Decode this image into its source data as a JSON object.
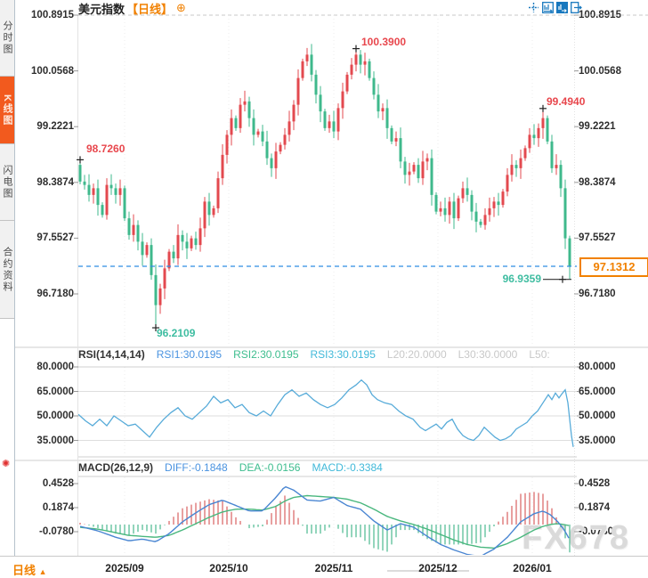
{
  "sidebar": {
    "tabs": [
      {
        "label": "分时图",
        "active": false
      },
      {
        "label": "K线图",
        "active": true
      },
      {
        "label": "闪电图",
        "active": false
      },
      {
        "label": "合约资料",
        "active": false
      }
    ],
    "indicator_icon": "✺"
  },
  "header": {
    "title": "美元指数",
    "period_tag": "【日线】",
    "add_icon": "⊕",
    "toolbar_icons": [
      "crosshair",
      "axis-scale",
      "zoom-drag",
      "restore"
    ]
  },
  "main_chart": {
    "y_axis_labels": [
      "100.8915",
      "100.0568",
      "99.2221",
      "98.3874",
      "97.5527",
      "96.7180"
    ],
    "annotations": {
      "first_high": "98.7260",
      "low": "96.2109",
      "peak": "100.3900",
      "recent_high": "99.4940",
      "recent_low": "96.9359",
      "current_price": "97.1312"
    }
  },
  "rsi": {
    "title": "RSI(14,14,14)",
    "items": [
      {
        "label": "RSI1:30.0195",
        "color": "#4a93e0"
      },
      {
        "label": "RSI2:30.0195",
        "color": "#3dbd8e"
      },
      {
        "label": "RSI3:30.0195",
        "color": "#41b9d9"
      },
      {
        "label": "L20:20.0000",
        "color": "#c8c8c8"
      },
      {
        "label": "L30:30.0000",
        "color": "#c8c8c8"
      },
      {
        "label": "L50:",
        "color": "#c8c8c8"
      }
    ],
    "y_axis_labels": [
      "80.0000",
      "65.0000",
      "50.0000",
      "35.0000"
    ]
  },
  "macd": {
    "title": "MACD(26,12,9)",
    "items": [
      {
        "label": "DIFF:-0.1848",
        "color": "#4a93e0"
      },
      {
        "label": "DEA:-0.0156",
        "color": "#3dbd8e"
      },
      {
        "label": "MACD:-0.3384",
        "color": "#41b9d9"
      }
    ],
    "y_axis_labels": [
      "0.4528",
      "0.1874",
      "-0.0780"
    ]
  },
  "footer": {
    "period_label": "日线",
    "arrow_icon": "▲",
    "dates": [
      "2025/09",
      "2025/10",
      "2025/11",
      "2025/12",
      "2026/01"
    ]
  },
  "watermark": "FX678",
  "colors": {
    "up": "#e3494f",
    "down": "#3fb98c",
    "accent_orange": "#f18101",
    "current_price_line": "#2f8de4",
    "rsi_line": "#57abd9",
    "diff_line": "#4a86d2",
    "dea_line": "#49b77e",
    "hist_up": "#d96060",
    "hist_down": "#4bb98f",
    "annotation_up": "#e8474d",
    "annotation_down": "#3fbda1",
    "grid": "#d9d9d9",
    "marker": "#222222"
  },
  "chart_data": [
    {
      "type": "candlestick",
      "title": "美元指数 日线",
      "x_axis_labels": [
        "2025/09",
        "2025/10",
        "2025/11",
        "2025/12",
        "2026/01"
      ],
      "y_ticks": [
        100.8915,
        100.0568,
        99.2221,
        98.3874,
        97.5527,
        96.718
      ],
      "first_open": 98.65,
      "closes": [
        98.4,
        98.35,
        98.2,
        98.3,
        98.05,
        97.9,
        98.35,
        98.3,
        98.2,
        98.3,
        97.85,
        97.6,
        97.75,
        97.5,
        97.3,
        97.45,
        97.0,
        96.55,
        96.8,
        97.1,
        97.35,
        97.25,
        97.6,
        97.5,
        97.4,
        97.55,
        97.45,
        97.7,
        98.1,
        97.9,
        98.0,
        98.45,
        98.8,
        99.1,
        99.35,
        99.2,
        99.55,
        99.6,
        99.35,
        99.1,
        99.15,
        99.0,
        98.75,
        98.6,
        98.85,
        98.95,
        99.1,
        99.3,
        99.55,
        99.95,
        100.2,
        100.3,
        100.0,
        99.7,
        99.45,
        99.2,
        99.3,
        99.15,
        99.5,
        99.75,
        100.0,
        100.15,
        100.3,
        100.15,
        100.2,
        99.95,
        99.7,
        99.45,
        99.5,
        99.2,
        99.0,
        99.05,
        98.7,
        98.5,
        98.55,
        98.65,
        98.45,
        98.7,
        98.75,
        98.2,
        97.95,
        98.0,
        97.9,
        98.1,
        97.85,
        98.15,
        98.3,
        98.2,
        97.95,
        97.8,
        97.75,
        97.9,
        98.0,
        98.1,
        98.05,
        98.25,
        98.5,
        98.65,
        98.6,
        98.75,
        98.9,
        99.1,
        99.05,
        99.2,
        99.35,
        99.0,
        98.6,
        98.65,
        98.3,
        97.55,
        97.1312
      ],
      "marked_candles": [
        {
          "index": 0,
          "high": 98.726
        },
        {
          "index": 17,
          "low": 96.2109
        },
        {
          "index": 62,
          "high": 100.39
        },
        {
          "index": 104,
          "high": 99.494
        },
        {
          "index": 110,
          "low": 96.9359
        }
      ],
      "current_price": 97.1312
    },
    {
      "type": "line",
      "title": "RSI(14,14,14)",
      "ylim": [
        25,
        85
      ],
      "y_ticks": [
        80,
        65,
        50,
        35
      ],
      "last_values": {
        "RSI1": 30.0195,
        "RSI2": 30.0195,
        "RSI3": 30.0195,
        "L20": 20.0,
        "L30": 30.0
      },
      "points": [
        [
          88,
          51
        ],
        [
          96,
          47
        ],
        [
          104,
          44
        ],
        [
          112,
          48
        ],
        [
          120,
          44
        ],
        [
          128,
          50
        ],
        [
          136,
          47
        ],
        [
          144,
          44
        ],
        [
          152,
          45
        ],
        [
          160,
          41
        ],
        [
          168,
          37
        ],
        [
          176,
          43
        ],
        [
          184,
          48
        ],
        [
          192,
          52
        ],
        [
          200,
          55
        ],
        [
          208,
          50
        ],
        [
          216,
          48
        ],
        [
          224,
          52
        ],
        [
          232,
          56
        ],
        [
          240,
          62
        ],
        [
          248,
          58
        ],
        [
          256,
          60
        ],
        [
          264,
          55
        ],
        [
          272,
          57
        ],
        [
          280,
          52
        ],
        [
          288,
          50
        ],
        [
          296,
          53
        ],
        [
          304,
          50
        ],
        [
          312,
          57
        ],
        [
          320,
          63
        ],
        [
          328,
          66
        ],
        [
          336,
          62
        ],
        [
          344,
          64
        ],
        [
          352,
          60
        ],
        [
          360,
          57
        ],
        [
          368,
          55
        ],
        [
          376,
          57
        ],
        [
          384,
          61
        ],
        [
          392,
          66
        ],
        [
          400,
          69
        ],
        [
          406,
          72
        ],
        [
          412,
          69
        ],
        [
          418,
          63
        ],
        [
          424,
          60
        ],
        [
          432,
          58
        ],
        [
          440,
          57
        ],
        [
          448,
          53
        ],
        [
          456,
          50
        ],
        [
          464,
          48
        ],
        [
          472,
          43
        ],
        [
          478,
          41
        ],
        [
          484,
          43
        ],
        [
          490,
          45
        ],
        [
          496,
          42
        ],
        [
          502,
          46
        ],
        [
          508,
          48
        ],
        [
          514,
          42
        ],
        [
          520,
          38
        ],
        [
          526,
          36
        ],
        [
          532,
          35
        ],
        [
          538,
          38
        ],
        [
          544,
          43
        ],
        [
          550,
          40
        ],
        [
          556,
          37
        ],
        [
          562,
          35
        ],
        [
          568,
          36
        ],
        [
          574,
          38
        ],
        [
          580,
          42
        ],
        [
          586,
          44
        ],
        [
          592,
          46
        ],
        [
          598,
          50
        ],
        [
          604,
          53
        ],
        [
          610,
          58
        ],
        [
          616,
          63
        ],
        [
          620,
          60
        ],
        [
          624,
          64
        ],
        [
          628,
          61
        ],
        [
          632,
          64
        ],
        [
          635,
          66
        ],
        [
          638,
          58
        ],
        [
          640,
          48
        ],
        [
          642,
          38
        ],
        [
          644,
          31
        ]
      ]
    },
    {
      "type": "macd",
      "title": "MACD(26,12,9)",
      "y_ticks": [
        0.4528,
        0.1874,
        -0.078
      ],
      "last_values": {
        "DIFF": -0.1848,
        "DEA": -0.0156,
        "MACD": -0.3384
      },
      "diff": [
        [
          90,
          -0.02
        ],
        [
          110,
          -0.07
        ],
        [
          130,
          -0.14
        ],
        [
          145,
          -0.18
        ],
        [
          160,
          -0.16
        ],
        [
          175,
          -0.19
        ],
        [
          190,
          -0.1
        ],
        [
          205,
          0.03
        ],
        [
          220,
          0.13
        ],
        [
          235,
          0.22
        ],
        [
          250,
          0.27
        ],
        [
          265,
          0.21
        ],
        [
          280,
          0.15
        ],
        [
          295,
          0.15
        ],
        [
          310,
          0.3
        ],
        [
          320,
          0.42
        ],
        [
          330,
          0.38
        ],
        [
          345,
          0.27
        ],
        [
          360,
          0.26
        ],
        [
          375,
          0.3
        ],
        [
          390,
          0.21
        ],
        [
          405,
          0.17
        ],
        [
          420,
          0.04
        ],
        [
          435,
          -0.06
        ],
        [
          450,
          0.01
        ],
        [
          465,
          -0.03
        ],
        [
          480,
          -0.13
        ],
        [
          495,
          -0.22
        ],
        [
          510,
          -0.28
        ],
        [
          525,
          -0.33
        ],
        [
          540,
          -0.35
        ],
        [
          555,
          -0.27
        ],
        [
          570,
          -0.14
        ],
        [
          585,
          0.03
        ],
        [
          600,
          0.12
        ],
        [
          610,
          0.15
        ],
        [
          618,
          0.11
        ],
        [
          626,
          0.04
        ],
        [
          634,
          -0.06
        ],
        [
          641,
          -0.1848
        ]
      ],
      "dea": [
        [
          90,
          -0.03
        ],
        [
          110,
          -0.05
        ],
        [
          130,
          -0.09
        ],
        [
          145,
          -0.12
        ],
        [
          160,
          -0.13
        ],
        [
          175,
          -0.14
        ],
        [
          190,
          -0.12
        ],
        [
          205,
          -0.06
        ],
        [
          220,
          0.01
        ],
        [
          235,
          0.08
        ],
        [
          250,
          0.14
        ],
        [
          265,
          0.17
        ],
        [
          280,
          0.17
        ],
        [
          295,
          0.16
        ],
        [
          310,
          0.2
        ],
        [
          320,
          0.26
        ],
        [
          330,
          0.3
        ],
        [
          345,
          0.32
        ],
        [
          360,
          0.31
        ],
        [
          375,
          0.3
        ],
        [
          390,
          0.28
        ],
        [
          405,
          0.24
        ],
        [
          420,
          0.17
        ],
        [
          435,
          0.09
        ],
        [
          450,
          0.04
        ],
        [
          465,
          0.0
        ],
        [
          480,
          -0.05
        ],
        [
          495,
          -0.11
        ],
        [
          510,
          -0.17
        ],
        [
          525,
          -0.22
        ],
        [
          540,
          -0.25
        ],
        [
          555,
          -0.26
        ],
        [
          570,
          -0.21
        ],
        [
          585,
          -0.14
        ],
        [
          600,
          -0.06
        ],
        [
          610,
          -0.02
        ],
        [
          618,
          0.0
        ],
        [
          626,
          0.01
        ],
        [
          634,
          0.0
        ],
        [
          641,
          -0.0156
        ]
      ]
    }
  ]
}
